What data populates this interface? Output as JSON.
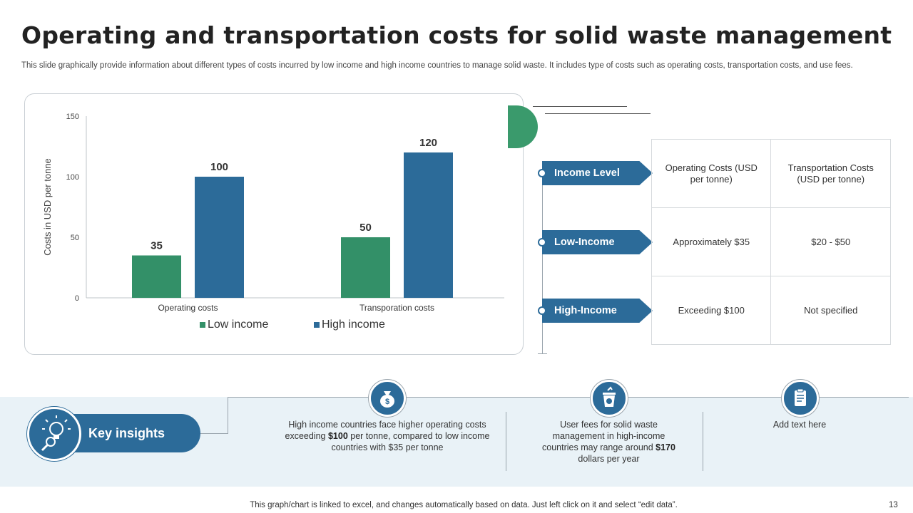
{
  "slide": {
    "title": "Operating and transportation costs for solid waste management",
    "subtitle": "This slide graphically provide information about different types of costs incurred by low income and high income countries to manage solid waste. It includes type of costs such as operating costs, transportation costs, and use fees.",
    "footer": "This graph/chart is linked to excel,  and changes automatically based on data. Just left click on it and select “edit data”.",
    "page_number": "13"
  },
  "chart_data": {
    "type": "bar",
    "categories": [
      "Operating costs",
      "Transporation costs"
    ],
    "series": [
      {
        "name": "Low income",
        "values": [
          35,
          50
        ],
        "color": "#339068"
      },
      {
        "name": "High income",
        "values": [
          100,
          120
        ],
        "color": "#2c6b99"
      }
    ],
    "title": "",
    "xlabel": "",
    "ylabel": "Costs in USD per tonne",
    "ylim": [
      0,
      150
    ],
    "yticks": [
      0,
      50,
      100,
      150
    ],
    "legend": "bottom",
    "grid": false
  },
  "levels": [
    {
      "label": "Income Level"
    },
    {
      "label": "Low-Income"
    },
    {
      "label": "High-Income"
    }
  ],
  "table": {
    "header": [
      "Operating Costs (USD per tonne)",
      "Transportation Costs (USD per tonne)"
    ],
    "rows": [
      [
        "Approximately $35",
        "$20 - $50"
      ],
      [
        "Exceeding $100",
        "Not specified"
      ]
    ]
  },
  "insights": {
    "label": "Key insights",
    "items": [
      {
        "icon": "money-bag-icon",
        "pre": "High income countries face higher operating costs exceeding ",
        "bold": "$100",
        "post": " per tonne, compared to low income countries with $35 per tonne"
      },
      {
        "icon": "waste-bin-icon",
        "pre": "User fees for solid waste management in high-income countries may range around ",
        "bold": "$170",
        "post": " dollars per year"
      },
      {
        "icon": "clipboard-icon",
        "text": "Add text here"
      }
    ]
  },
  "colors": {
    "primary": "#2c6b99",
    "green": "#339068",
    "band": "#e9f2f7"
  }
}
